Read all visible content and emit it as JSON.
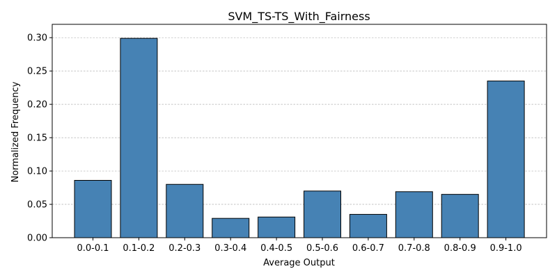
{
  "chart_data": {
    "type": "bar",
    "title": "SVM_TS-TS_With_Fairness",
    "xlabel": "Average Output",
    "ylabel": "Normalized Frequency",
    "categories": [
      "0.0-0.1",
      "0.1-0.2",
      "0.2-0.3",
      "0.3-0.4",
      "0.4-0.5",
      "0.5-0.6",
      "0.6-0.7",
      "0.7-0.8",
      "0.8-0.9",
      "0.9-1.0"
    ],
    "values": [
      0.086,
      0.299,
      0.08,
      0.029,
      0.031,
      0.07,
      0.035,
      0.069,
      0.065,
      0.235
    ],
    "ylim": [
      0,
      0.32
    ],
    "yticks": [
      0.0,
      0.05,
      0.1,
      0.15,
      0.2,
      0.25,
      0.3
    ],
    "ytick_labels": [
      "0.00",
      "0.05",
      "0.10",
      "0.15",
      "0.20",
      "0.25",
      "0.30"
    ],
    "grid": "y-dashed",
    "legend": "none",
    "colors": {
      "bar_fill": "#4682b4",
      "bar_edge": "#000000",
      "grid": "#b0b0b0"
    }
  }
}
